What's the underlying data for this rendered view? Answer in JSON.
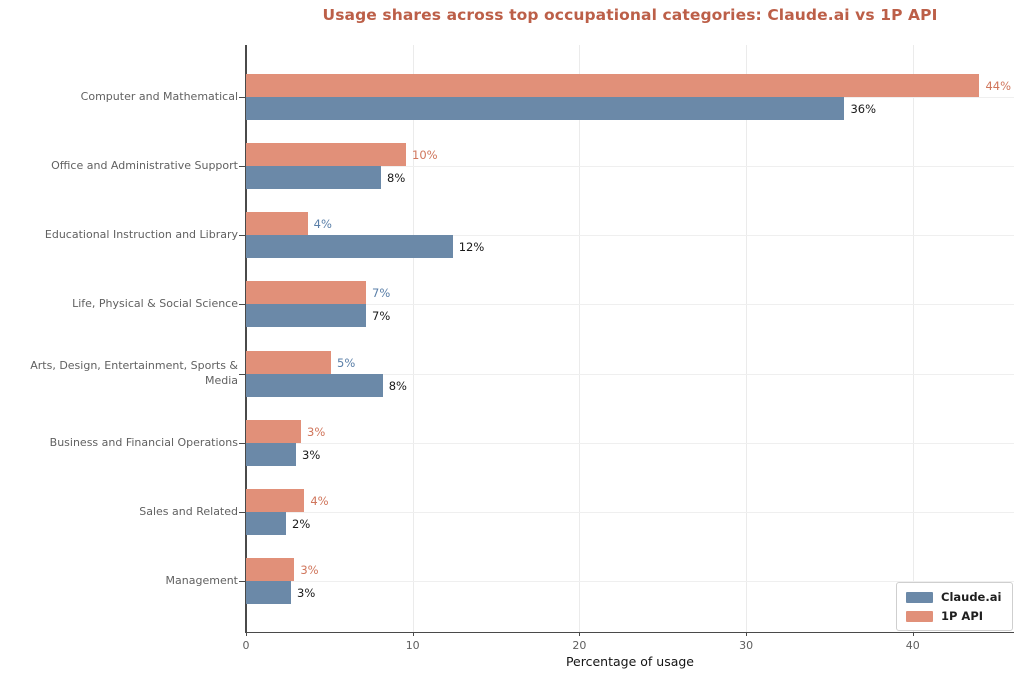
{
  "title": {
    "text": "Usage shares across top occupational categories: Claude.ai vs 1P API",
    "color": "#bc5f48"
  },
  "axes": {
    "xlabel": "Percentage of usage",
    "xtick_labels": [
      "0",
      "10",
      "20",
      "30",
      "40"
    ]
  },
  "legend": {
    "position": "lower right",
    "items": [
      {
        "label": "Claude.ai",
        "color": "#6b89a8"
      },
      {
        "label": "1P API",
        "color": "#e19079"
      }
    ]
  },
  "chart_data": {
    "type": "bar",
    "orientation": "horizontal",
    "title": "Usage shares across top occupational categories: Claude.ai vs 1P API",
    "xlabel": "Percentage of usage",
    "ylabel": "",
    "xlim": [
      0,
      46
    ],
    "xticks": [
      0,
      10,
      20,
      30,
      40
    ],
    "grid": true,
    "legend_position": "lower right",
    "categories": [
      "Computer and Mathematical",
      "Office and Administrative Support",
      "Educational Instruction and Library",
      "Life, Physical & Social Science",
      "Arts, Design, Entertainment, Sports & Media",
      "Business and Financial Operations",
      "Sales and Related",
      "Management"
    ],
    "series": [
      {
        "name": "1P API",
        "color": "#e19079",
        "values": [
          44,
          10,
          4,
          7,
          5,
          3,
          4,
          3
        ],
        "value_labels": [
          "44%",
          "10%",
          "4%",
          "7%",
          "5%",
          "3%",
          "4%",
          "3%"
        ],
        "label_colors": [
          "#d0765c",
          "#d0765c",
          "#5a7fa8",
          "#5a7fa8",
          "#5a7fa8",
          "#d0765c",
          "#d0765c",
          "#d0765c"
        ],
        "bar_lengths": [
          44.0,
          9.6,
          3.7,
          7.2,
          5.1,
          3.3,
          3.5,
          2.9
        ]
      },
      {
        "name": "Claude.ai",
        "color": "#6b89a8",
        "values": [
          36,
          8,
          12,
          7,
          8,
          3,
          2,
          3
        ],
        "value_labels": [
          "36%",
          "8%",
          "12%",
          "7%",
          "8%",
          "3%",
          "2%",
          "3%"
        ],
        "label_colors": [
          "#1a1a1a",
          "#1a1a1a",
          "#1a1a1a",
          "#1a1a1a",
          "#1a1a1a",
          "#1a1a1a",
          "#1a1a1a",
          "#1a1a1a"
        ],
        "bar_lengths": [
          35.9,
          8.1,
          12.4,
          7.2,
          8.2,
          3.0,
          2.4,
          2.7
        ]
      }
    ]
  }
}
